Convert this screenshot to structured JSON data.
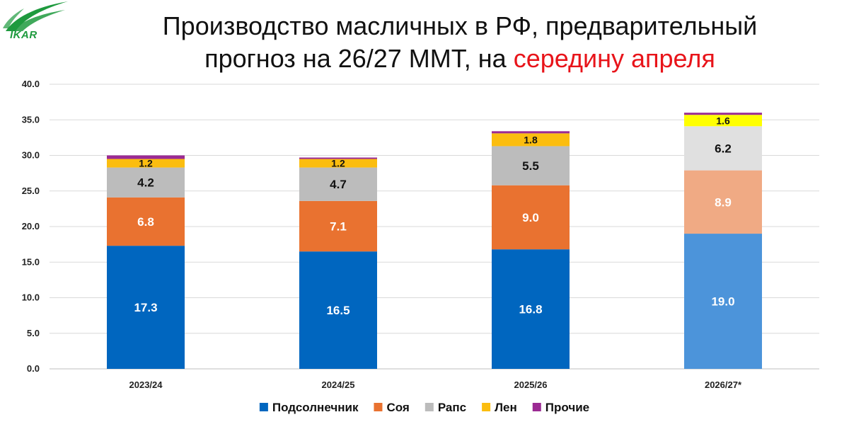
{
  "logo": {
    "text": "IKAR"
  },
  "title": {
    "line1": "Производство масличных в РФ, предварительный",
    "line2_prefix": "прогноз на 26/27 ММТ, на ",
    "line2_accent": "середину апреля"
  },
  "colors": {
    "accent": "#e8141a",
    "logo_green": "#1e9a3e"
  },
  "chart_data": {
    "type": "bar",
    "stacked": true,
    "categories": [
      "2023/24",
      "2024/25",
      "2025/26",
      "2026/27*"
    ],
    "series": [
      {
        "name": "Подсолнечник",
        "values": [
          17.3,
          16.5,
          16.8,
          19.0
        ],
        "color": "#0066bf",
        "forecast_color": "#4c94da",
        "label_color": "#ffffff"
      },
      {
        "name": "Соя",
        "values": [
          6.8,
          7.1,
          9.0,
          8.9
        ],
        "color": "#e97230",
        "forecast_color": "#f0aa84",
        "label_color": "#ffffff"
      },
      {
        "name": "Рапс",
        "values": [
          4.2,
          4.7,
          5.5,
          6.2
        ],
        "color": "#bcbcbc",
        "forecast_color": "#e0e0e0",
        "label_color": "#111111"
      },
      {
        "name": "Лен",
        "values": [
          1.2,
          1.2,
          1.8,
          1.6
        ],
        "color": "#fbbd0f",
        "forecast_color": "#ffff00",
        "label_color": "#111111"
      },
      {
        "name": "Прочие",
        "values": [
          0.5,
          0.2,
          0.3,
          0.3
        ],
        "color": "#9b2a93",
        "forecast_color": "#9b2a93",
        "label_color": "#ffffff"
      }
    ],
    "show_labels": [
      true,
      true,
      true,
      true,
      false
    ],
    "forecast_index": 3,
    "ylim": [
      0,
      40
    ],
    "yticks": [
      "0.0",
      "5.0",
      "10.0",
      "15.0",
      "20.0",
      "25.0",
      "30.0",
      "35.0",
      "40.0"
    ],
    "grid": true,
    "legend_position": "bottom"
  }
}
